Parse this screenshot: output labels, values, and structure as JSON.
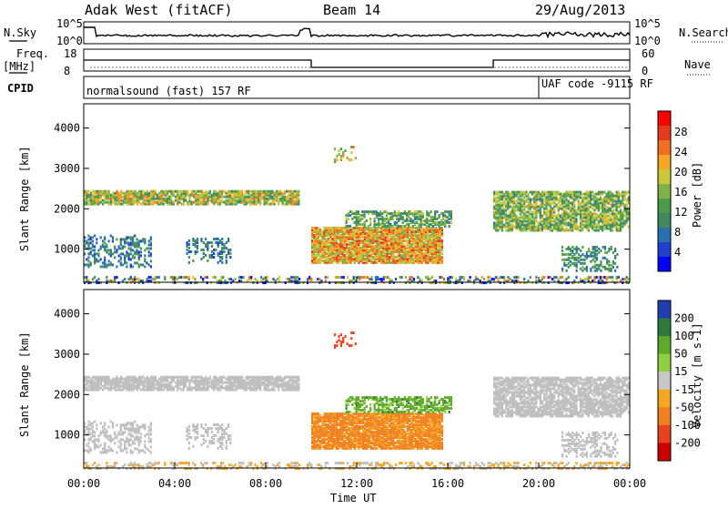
{
  "header": {
    "radar": "Adak West (fitACF)",
    "beam": "Beam 14",
    "date": "29/Aug/2013"
  },
  "strips": {
    "nsky_label": "N.Sky",
    "nsky_ticks": [
      "10^5",
      "10^0"
    ],
    "nsearch_label": "N.Search",
    "nsearch_ticks": [
      "10^5",
      "10^0"
    ],
    "freq_label": "Freq.",
    "freq_unit": "[MHz]",
    "freq_ticks": [
      "18",
      "8"
    ],
    "nave_label": "Nave",
    "nave_ticks": [
      "60",
      "0"
    ],
    "cpid_label": "CPID",
    "cpid_text_left": "normalsound (fast) 157 RF",
    "cpid_text_right": "UAF code -9115 RF"
  },
  "chart_data": [
    {
      "type": "heatmap",
      "title": "",
      "xlabel": "",
      "ylabel": "Slant Range [km]",
      "quantity": "Power",
      "units": "dB",
      "colorbar_label": "Power [dB]",
      "colorbar_ticks": [
        "28",
        "24",
        "20",
        "16",
        "12",
        "8",
        "4"
      ],
      "colorbar_range": [
        0,
        30
      ],
      "colorbar_colors": [
        "#0000ff",
        "#1f3fd0",
        "#2a6fb0",
        "#3f8a5f",
        "#4d9a4a",
        "#7fb347",
        "#c8c83a",
        "#f5a623",
        "#f07020",
        "#e63a1e",
        "#ff0000"
      ],
      "xlim_hours_ut": [
        0,
        24
      ],
      "ylim_km": [
        180,
        4600
      ],
      "yticks": [
        1000,
        2000,
        3000,
        4000
      ],
      "features": [
        {
          "name": "E/F band echoes",
          "hours": [
            0,
            9.5
          ],
          "range_km": [
            2150,
            2500
          ],
          "typical_power_db": 14
        },
        {
          "name": "near-range band",
          "hours": [
            0,
            3
          ],
          "range_km": [
            600,
            1400
          ],
          "typical_power_db": 10
        },
        {
          "name": "afternoon ground scatter",
          "hours": [
            10,
            15.5
          ],
          "range_km": [
            700,
            1900
          ],
          "typical_power_db": 20
        },
        {
          "name": "late-day scatter",
          "hours": [
            18,
            24
          ],
          "range_km": [
            1500,
            2500
          ],
          "typical_power_db": 14
        }
      ]
    },
    {
      "type": "heatmap",
      "title": "",
      "xlabel": "Time UT",
      "ylabel": "Slant Range [km]",
      "quantity": "Velocity",
      "units": "m s^-1",
      "colorbar_label": "Velocity [m s-1]",
      "colorbar_ticks": [
        "200",
        "100",
        "50",
        "15",
        "-15",
        "-50",
        "-100",
        "-200"
      ],
      "colorbar_range": [
        -250,
        250
      ],
      "xlim_hours_ut": [
        0,
        24
      ],
      "ylim_km": [
        180,
        4600
      ],
      "yticks": [
        1000,
        2000,
        3000,
        4000
      ],
      "xticks": [
        "00:00",
        "04:00",
        "08:00",
        "12:00",
        "16:00",
        "20:00",
        "00:00"
      ],
      "features": [
        {
          "name": "ground scatter band",
          "hours": [
            0,
            9.5
          ],
          "range_km": [
            2100,
            2500
          ],
          "velocity": "ground-scatter"
        },
        {
          "name": "afternoon negative velocity",
          "hours": [
            10.5,
            16
          ],
          "range_km": [
            700,
            1600
          ],
          "velocity_mps": -60
        },
        {
          "name": "positive velocity edge",
          "hours": [
            12,
            17
          ],
          "range_km": [
            1600,
            2100
          ],
          "velocity_mps": 40
        }
      ]
    }
  ],
  "colors": {
    "ground_scatter": "#bebebe",
    "axis": "#000000"
  }
}
